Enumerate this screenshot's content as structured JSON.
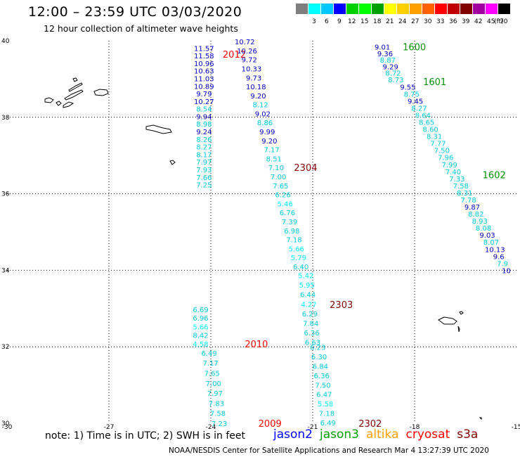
{
  "header": {
    "title": "12:00 – 23:59 UTC 03/03/2020",
    "subtitle": "12 hour collection of altimeter wave heights"
  },
  "scale": {
    "unit": "(ft)",
    "bins": [
      {
        "label": "",
        "color": "#7f7f7f"
      },
      {
        "label": "3",
        "color": "#00ffff"
      },
      {
        "label": "6",
        "color": "#00c8ff"
      },
      {
        "label": "9",
        "color": "#0000ff"
      },
      {
        "label": "12",
        "color": "#00d000"
      },
      {
        "label": "15",
        "color": "#00ff00"
      },
      {
        "label": "18",
        "color": "#00a000"
      },
      {
        "label": "21",
        "color": "#ffff00"
      },
      {
        "label": "24",
        "color": "#ffd000"
      },
      {
        "label": "27",
        "color": "#ffa000"
      },
      {
        "label": "30",
        "color": "#ff6000"
      },
      {
        "label": "33",
        "color": "#ff0000"
      },
      {
        "label": "36",
        "color": "#c00000"
      },
      {
        "label": "39",
        "color": "#800000"
      },
      {
        "label": "42",
        "color": "#a000a0"
      },
      {
        "label": "45",
        "color": "#ff00ff"
      },
      {
        "label": "70",
        "color": "#000000"
      }
    ]
  },
  "axes": {
    "x_ticks": [
      "-30",
      "-27",
      "-24",
      "-21",
      "-18",
      "-15"
    ],
    "y_ticks": [
      "40",
      "38",
      "36",
      "34",
      "32",
      "30"
    ]
  },
  "tracks": [
    {
      "label": "2012",
      "color": "#ff0000",
      "label_x": -23.65,
      "label_y": 39.65,
      "x_start": -24.2,
      "y_start": 39.81,
      "x_end": -24.2,
      "y_end": 36.24,
      "values": [
        {
          "v": "11.57",
          "c": "#0000c0"
        },
        {
          "v": "11.58",
          "c": "#0000c0"
        },
        {
          "v": "10.96",
          "c": "#0000c0"
        },
        {
          "v": "10.63",
          "c": "#0000c0"
        },
        {
          "v": "11.03",
          "c": "#0000c0"
        },
        {
          "v": "10.89",
          "c": "#0000c0"
        },
        {
          "v": "9.79",
          "c": "#0000c0"
        },
        {
          "v": "10.27",
          "c": "#0000c0"
        },
        {
          "v": "8.54",
          "c": "#00c8d8"
        },
        {
          "v": "9.94",
          "c": "#0000c0"
        },
        {
          "v": "8.98",
          "c": "#00c8d8"
        },
        {
          "v": "9.24",
          "c": "#0000c0"
        },
        {
          "v": "8.26",
          "c": "#00c8d8"
        },
        {
          "v": "8.27",
          "c": "#00c8d8"
        },
        {
          "v": "8.17",
          "c": "#00c8d8"
        },
        {
          "v": "7.97",
          "c": "#00c8d8"
        },
        {
          "v": "7.93",
          "c": "#00c8d8"
        },
        {
          "v": "7.66",
          "c": "#00c8d8"
        },
        {
          "v": "7.25",
          "c": "#00c8d8"
        }
      ]
    },
    {
      "label": "2304",
      "color": "#800000",
      "label_x": -21.55,
      "label_y": 36.69,
      "x_start": -23.0,
      "y_start": 39.98,
      "x_end": -21.35,
      "y_end": 34.1,
      "values": [
        {
          "v": "10.72",
          "c": "#0000c0"
        },
        {
          "v": "10.26",
          "c": "#0000c0"
        },
        {
          "v": "9.72",
          "c": "#0000c0"
        },
        {
          "v": "10.33",
          "c": "#0000c0"
        },
        {
          "v": "9.73",
          "c": "#0000c0"
        },
        {
          "v": "10.18",
          "c": "#0000c0"
        },
        {
          "v": "9.20",
          "c": "#0000c0"
        },
        {
          "v": "8.12",
          "c": "#00c8d8"
        },
        {
          "v": "9.02",
          "c": "#0000c0"
        },
        {
          "v": "8.86",
          "c": "#00c8d8"
        },
        {
          "v": "9.99",
          "c": "#0000c0"
        },
        {
          "v": "9.20",
          "c": "#0000c0"
        },
        {
          "v": "7.17",
          "c": "#00c8d8"
        },
        {
          "v": "8.51",
          "c": "#00c8d8"
        },
        {
          "v": "7.10",
          "c": "#00c8d8"
        },
        {
          "v": "7.00",
          "c": "#00c8d8"
        },
        {
          "v": "7.65",
          "c": "#00c8d8"
        },
        {
          "v": "6.26",
          "c": "#00c8d8"
        },
        {
          "v": "5.46",
          "c": "#00ffff"
        },
        {
          "v": "6.76",
          "c": "#00c8d8"
        },
        {
          "v": "7.39",
          "c": "#00c8d8"
        },
        {
          "v": "6.98",
          "c": "#00c8d8"
        },
        {
          "v": "7.18",
          "c": "#00c8d8"
        },
        {
          "v": "5.66",
          "c": "#00ffff"
        },
        {
          "v": "5.79",
          "c": "#00ffff"
        },
        {
          "v": "6.40",
          "c": "#00c8d8"
        }
      ]
    },
    {
      "label": "2303",
      "color": "#800000",
      "label_x": -20.5,
      "label_y": 33.11,
      "x_start": -21.2,
      "y_start": 33.87,
      "x_end": -21.0,
      "y_end": 32.12,
      "values": [
        {
          "v": "5.42",
          "c": "#00ffff"
        },
        {
          "v": "5.95",
          "c": "#00ffff"
        },
        {
          "v": "6.44",
          "c": "#00c8d8"
        },
        {
          "v": "4.27",
          "c": "#00ffff"
        },
        {
          "v": "6.29",
          "c": "#00c8d8"
        },
        {
          "v": "7.84",
          "c": "#00c8d8"
        },
        {
          "v": "6.36",
          "c": "#00c8d8"
        },
        {
          "v": "6.63",
          "c": "#00c8d8"
        }
      ]
    },
    {
      "label": "2302",
      "color": "#800000",
      "label_x": -19.65,
      "label_y": 30.0,
      "x_start": -20.85,
      "y_start": 31.99,
      "x_end": -20.55,
      "y_end": 30.02,
      "values": [
        {
          "v": "6.23",
          "c": "#00c8d8"
        },
        {
          "v": "6.30",
          "c": "#00c8d8"
        },
        {
          "v": "6.84",
          "c": "#00c8d8"
        },
        {
          "v": "6.36",
          "c": "#00c8d8"
        },
        {
          "v": "7.50",
          "c": "#00c8d8"
        },
        {
          "v": "6.47",
          "c": "#00c8d8"
        },
        {
          "v": "5.58",
          "c": "#00ffff"
        },
        {
          "v": "7.18",
          "c": "#00c8d8"
        },
        {
          "v": "6.49",
          "c": "#00c8d8"
        }
      ]
    },
    {
      "label": "2010",
      "color": "#ff0000",
      "label_x": -23.0,
      "label_y": 32.08,
      "x_start": -24.3,
      "y_start": 32.98,
      "x_end": -24.3,
      "y_end": 32.08,
      "values": [
        {
          "v": "6.69",
          "c": "#00c8d8"
        },
        {
          "v": "6.96",
          "c": "#00c8d8"
        },
        {
          "v": "5.66",
          "c": "#00ffff"
        },
        {
          "v": "8.42",
          "c": "#00c8d8"
        },
        {
          "v": "4.58",
          "c": "#00ffff"
        }
      ]
    },
    {
      "label": "2009",
      "color": "#ff0000",
      "label_x": -22.6,
      "label_y": 30.0,
      "x_start": -24.05,
      "y_start": 31.84,
      "x_end": -23.75,
      "y_end": 30.0,
      "values": [
        {
          "v": "6.49",
          "c": "#00c8d8"
        },
        {
          "v": "7.17",
          "c": "#00c8d8"
        },
        {
          "v": "7.65",
          "c": "#00c8d8"
        },
        {
          "v": "7.00",
          "c": "#00c8d8"
        },
        {
          "v": "7.97",
          "c": "#00c8d8"
        },
        {
          "v": "7.83",
          "c": "#00c8d8"
        },
        {
          "v": "7.58",
          "c": "#00c8d8"
        },
        {
          "v": "7.23",
          "c": "#00c8d8"
        }
      ]
    },
    {
      "label": "1600",
      "color": "#009000",
      "label_x": -18.35,
      "label_y": 39.84,
      "x_start": -18.95,
      "y_start": 39.84,
      "x_end": -18.55,
      "y_end": 38.99,
      "values": [
        {
          "v": "9.01",
          "c": "#0000c0"
        },
        {
          "v": "9.36",
          "c": "#0000c0"
        },
        {
          "v": "8.87",
          "c": "#00c8d8"
        },
        {
          "v": "9.29",
          "c": "#0000c0"
        },
        {
          "v": "8.72",
          "c": "#00c8d8"
        },
        {
          "v": "8.73",
          "c": "#00c8d8"
        }
      ]
    },
    {
      "label": "1601",
      "color": "#009000",
      "label_x": -17.75,
      "label_y": 38.93,
      "x_start": -18.2,
      "y_start": 38.8,
      "x_end": -15.3,
      "y_end": 34.0,
      "values": [
        {
          "v": "9.55",
          "c": "#0000c0"
        },
        {
          "v": "8.75",
          "c": "#00c8d8"
        },
        {
          "v": "9.45",
          "c": "#0000c0"
        },
        {
          "v": "8.27",
          "c": "#00c8d8"
        },
        {
          "v": "8.64",
          "c": "#00c8d8"
        },
        {
          "v": "8.65",
          "c": "#00c8d8"
        },
        {
          "v": "8.60",
          "c": "#00c8d8"
        },
        {
          "v": "8.31",
          "c": "#00c8d8"
        },
        {
          "v": "7.77",
          "c": "#00c8d8"
        },
        {
          "v": "7.50",
          "c": "#00c8d8"
        },
        {
          "v": "7.96",
          "c": "#00c8d8"
        },
        {
          "v": "7.99",
          "c": "#00c8d8"
        },
        {
          "v": "7.40",
          "c": "#00c8d8"
        },
        {
          "v": "7.33",
          "c": "#00c8d8"
        },
        {
          "v": "7.58",
          "c": "#00c8d8"
        },
        {
          "v": "8.31",
          "c": "#00c8d8"
        },
        {
          "v": "7.78",
          "c": "#00c8d8"
        },
        {
          "v": "9.87",
          "c": "#0000c0"
        },
        {
          "v": "8.82",
          "c": "#00c8d8"
        },
        {
          "v": "8.93",
          "c": "#00c8d8"
        },
        {
          "v": "8.08",
          "c": "#00c8d8"
        },
        {
          "v": "9.03",
          "c": "#0000c0"
        },
        {
          "v": "8.07",
          "c": "#00c8d8"
        },
        {
          "v": "10.13",
          "c": "#0000c0"
        },
        {
          "v": "9.6",
          "c": "#0000c0"
        },
        {
          "v": "7.9",
          "c": "#00c8d8"
        },
        {
          "v": "10",
          "c": "#0000c0"
        }
      ]
    },
    {
      "label": "1602",
      "color": "#009000",
      "label_x": -16.0,
      "label_y": 36.5,
      "x_start": null,
      "y_start": null,
      "x_end": null,
      "y_end": null,
      "values": []
    }
  ],
  "note": "note:  1) Time is in UTC;  2) SWH is in feet",
  "legend": [
    {
      "label": "jason2",
      "color": "#0000ff"
    },
    {
      "label": "jason3",
      "color": "#00a000"
    },
    {
      "label": "altika",
      "color": "#ffa000"
    },
    {
      "label": "cryosat",
      "color": "#ff0000"
    },
    {
      "label": "s3a",
      "color": "#800000"
    }
  ],
  "footer": "NOAA/NESDIS Center for Satellite Applications and Research    Mar  4 13:27:39 UTC 2020"
}
